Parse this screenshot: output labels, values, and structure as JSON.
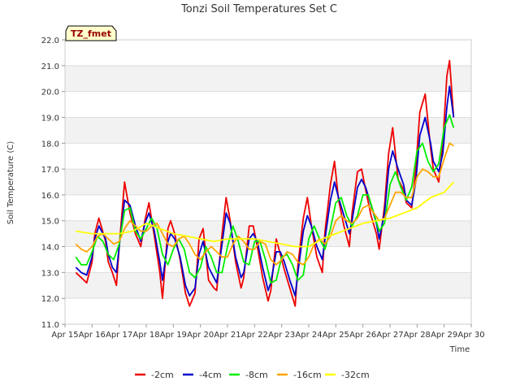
{
  "chart_data": {
    "type": "line",
    "title": "Tonzi Soil Temperatures Set C",
    "xlabel": "Time",
    "ylabel": "Soil Temperature (C)",
    "ylim": [
      11.0,
      22.0
    ],
    "yticks": [
      "11.0",
      "12.0",
      "13.0",
      "14.0",
      "15.0",
      "16.0",
      "17.0",
      "18.0",
      "19.0",
      "20.0",
      "21.0",
      "22.0"
    ],
    "xlim": [
      15,
      30
    ],
    "xticks": [
      "Apr 15",
      "Apr 16",
      "Apr 17",
      "Apr 18",
      "Apr 19",
      "Apr 20",
      "Apr 21",
      "Apr 22",
      "Apr 23",
      "Apr 24",
      "Apr 25",
      "Apr 26",
      "Apr 27",
      "Apr 28",
      "Apr 29",
      "Apr 30"
    ],
    "badge": "TZ_fmet",
    "grid": "horizontal bands",
    "legend_position": "bottom",
    "series": [
      {
        "name": "-2cm",
        "color": "#ee0000",
        "x": [
          15.4,
          15.6,
          15.8,
          16.0,
          16.1,
          16.25,
          16.5,
          16.6,
          16.75,
          16.9,
          17.0,
          17.2,
          17.4,
          17.6,
          17.8,
          17.95,
          18.1,
          18.3,
          18.5,
          18.6,
          18.8,
          18.9,
          19.05,
          19.25,
          19.45,
          19.6,
          19.8,
          19.95,
          20.1,
          20.3,
          20.5,
          20.6,
          20.8,
          20.95,
          21.1,
          21.3,
          21.5,
          21.6,
          21.8,
          21.95,
          22.1,
          22.3,
          22.5,
          22.6,
          22.8,
          22.95,
          23.1,
          23.3,
          23.5,
          23.6,
          23.8,
          23.95,
          24.1,
          24.3,
          24.5,
          24.6,
          24.8,
          24.95,
          25.1,
          25.3,
          25.5,
          25.6,
          25.8,
          25.95,
          26.1,
          26.3,
          26.5,
          26.6,
          26.8,
          26.95,
          27.1,
          27.3,
          27.5,
          27.6,
          27.8,
          27.95,
          28.1,
          28.3,
          28.5,
          28.6,
          28.8,
          28.95,
          29.1,
          29.2,
          29.35
        ],
        "y": [
          13.0,
          12.8,
          12.6,
          13.4,
          14.5,
          15.1,
          14.2,
          13.4,
          13.0,
          12.5,
          14.0,
          16.5,
          15.3,
          14.5,
          14.0,
          15.0,
          15.7,
          14.4,
          13.0,
          12.0,
          14.7,
          15.0,
          14.5,
          13.5,
          12.2,
          11.7,
          12.2,
          14.3,
          14.7,
          12.7,
          12.4,
          12.3,
          14.5,
          15.9,
          15.0,
          13.4,
          12.4,
          12.8,
          14.8,
          14.8,
          14.0,
          12.8,
          11.9,
          12.3,
          14.3,
          13.7,
          13.1,
          12.4,
          11.7,
          13.3,
          15.1,
          15.9,
          14.8,
          13.6,
          13.0,
          14.6,
          16.4,
          17.3,
          15.8,
          14.8,
          14.0,
          15.3,
          16.9,
          17.0,
          16.2,
          15.2,
          14.5,
          13.9,
          15.6,
          17.6,
          18.6,
          16.6,
          16.2,
          15.7,
          15.5,
          17.0,
          19.2,
          19.9,
          17.8,
          17.0,
          16.5,
          18.0,
          20.6,
          21.2,
          19.0
        ]
      },
      {
        "name": "-4cm",
        "color": "#0000cc",
        "x": [
          15.4,
          15.6,
          15.8,
          16.0,
          16.1,
          16.25,
          16.5,
          16.6,
          16.75,
          16.9,
          17.0,
          17.2,
          17.4,
          17.6,
          17.8,
          17.95,
          18.1,
          18.3,
          18.5,
          18.6,
          18.8,
          18.9,
          19.05,
          19.25,
          19.45,
          19.6,
          19.8,
          19.95,
          20.1,
          20.3,
          20.5,
          20.6,
          20.8,
          20.95,
          21.1,
          21.3,
          21.5,
          21.6,
          21.8,
          21.95,
          22.1,
          22.3,
          22.5,
          22.6,
          22.8,
          22.95,
          23.1,
          23.3,
          23.5,
          23.6,
          23.8,
          23.95,
          24.1,
          24.3,
          24.5,
          24.6,
          24.8,
          24.95,
          25.1,
          25.3,
          25.5,
          25.6,
          25.8,
          25.95,
          26.1,
          26.3,
          26.5,
          26.6,
          26.8,
          26.95,
          27.1,
          27.3,
          27.5,
          27.6,
          27.8,
          27.95,
          28.1,
          28.3,
          28.5,
          28.6,
          28.8,
          28.95,
          29.1,
          29.2,
          29.35
        ],
        "y": [
          13.2,
          13.0,
          12.9,
          13.6,
          14.3,
          14.8,
          14.3,
          13.7,
          13.2,
          13.0,
          14.0,
          15.8,
          15.6,
          14.8,
          14.2,
          14.9,
          15.3,
          14.6,
          13.4,
          12.7,
          14.2,
          14.5,
          14.3,
          13.6,
          12.5,
          12.1,
          12.4,
          13.7,
          14.2,
          13.2,
          12.8,
          12.6,
          14.1,
          15.3,
          14.9,
          13.6,
          12.8,
          13.0,
          14.3,
          14.5,
          14.2,
          13.2,
          12.3,
          12.6,
          13.8,
          13.8,
          13.4,
          12.7,
          12.1,
          13.0,
          14.6,
          15.2,
          14.8,
          14.0,
          13.5,
          14.3,
          15.8,
          16.5,
          15.9,
          15.2,
          14.5,
          15.0,
          16.3,
          16.6,
          16.3,
          15.6,
          14.9,
          14.3,
          15.3,
          17.0,
          17.7,
          17.0,
          16.4,
          15.8,
          15.6,
          16.5,
          18.3,
          19.0,
          18.0,
          17.3,
          16.9,
          17.6,
          19.4,
          20.2,
          19.0
        ]
      },
      {
        "name": "-8cm",
        "color": "#00ee00",
        "x": [
          15.4,
          15.6,
          15.8,
          16.0,
          16.2,
          16.4,
          16.6,
          16.8,
          17.0,
          17.2,
          17.4,
          17.6,
          17.8,
          18.0,
          18.2,
          18.4,
          18.6,
          18.8,
          19.0,
          19.2,
          19.4,
          19.6,
          19.8,
          20.0,
          20.2,
          20.4,
          20.6,
          20.8,
          21.0,
          21.2,
          21.4,
          21.6,
          21.8,
          22.0,
          22.2,
          22.4,
          22.6,
          22.8,
          23.0,
          23.2,
          23.4,
          23.6,
          23.8,
          24.0,
          24.2,
          24.4,
          24.6,
          24.8,
          25.0,
          25.2,
          25.4,
          25.6,
          25.8,
          26.0,
          26.2,
          26.4,
          26.6,
          26.8,
          27.0,
          27.2,
          27.4,
          27.6,
          27.8,
          28.0,
          28.2,
          28.4,
          28.6,
          28.8,
          29.0,
          29.2,
          29.35
        ],
        "y": [
          13.6,
          13.3,
          13.3,
          13.8,
          14.4,
          14.2,
          13.7,
          13.5,
          14.1,
          15.4,
          15.5,
          14.6,
          14.3,
          14.7,
          15.1,
          14.7,
          13.7,
          13.3,
          13.9,
          14.3,
          13.9,
          13.0,
          12.8,
          13.2,
          14.0,
          13.6,
          13.0,
          13.0,
          14.0,
          14.8,
          14.2,
          13.4,
          13.3,
          14.2,
          14.2,
          13.5,
          12.6,
          12.7,
          13.6,
          13.7,
          13.3,
          12.7,
          12.9,
          14.3,
          14.8,
          14.3,
          13.9,
          14.7,
          15.7,
          15.9,
          15.2,
          14.8,
          15.2,
          16.0,
          16.0,
          15.3,
          14.6,
          14.9,
          16.4,
          16.9,
          16.3,
          15.8,
          16.3,
          17.7,
          18.0,
          17.3,
          16.9,
          17.2,
          18.6,
          19.1,
          18.6
        ]
      },
      {
        "name": "-16cm",
        "color": "#ffa500",
        "x": [
          15.4,
          15.6,
          15.8,
          16.0,
          16.2,
          16.4,
          16.6,
          16.8,
          17.0,
          17.2,
          17.4,
          17.6,
          17.8,
          18.0,
          18.2,
          18.4,
          18.6,
          18.8,
          19.0,
          19.2,
          19.4,
          19.6,
          19.8,
          20.0,
          20.2,
          20.4,
          20.6,
          20.8,
          21.0,
          21.2,
          21.4,
          21.6,
          21.8,
          22.0,
          22.2,
          22.4,
          22.6,
          22.8,
          23.0,
          23.2,
          23.4,
          23.6,
          23.8,
          24.0,
          24.2,
          24.4,
          24.6,
          24.8,
          25.0,
          25.2,
          25.4,
          25.6,
          25.8,
          26.0,
          26.2,
          26.4,
          26.6,
          26.8,
          27.0,
          27.2,
          27.4,
          27.6,
          27.8,
          28.0,
          28.2,
          28.4,
          28.6,
          28.8,
          29.0,
          29.2,
          29.35
        ],
        "y": [
          14.1,
          13.9,
          13.8,
          14.0,
          14.4,
          14.5,
          14.3,
          14.1,
          14.2,
          14.7,
          15.0,
          14.8,
          14.6,
          14.6,
          14.8,
          14.9,
          14.5,
          14.1,
          14.0,
          14.3,
          14.4,
          14.1,
          13.7,
          13.5,
          13.8,
          14.0,
          13.8,
          13.6,
          13.6,
          14.1,
          14.4,
          14.2,
          13.9,
          13.9,
          14.2,
          14.1,
          13.5,
          13.3,
          13.5,
          13.8,
          13.7,
          13.4,
          13.3,
          13.6,
          14.1,
          14.3,
          14.1,
          14.4,
          15.0,
          15.2,
          15.0,
          14.9,
          15.1,
          15.5,
          15.6,
          15.3,
          15.0,
          15.1,
          15.6,
          16.1,
          16.1,
          15.9,
          15.9,
          16.7,
          17.0,
          16.9,
          16.7,
          16.7,
          17.4,
          18.0,
          17.9
        ]
      },
      {
        "name": "-32cm",
        "color": "#ffff00",
        "x": [
          15.4,
          16.0,
          16.5,
          17.0,
          17.5,
          18.0,
          18.5,
          19.0,
          19.5,
          20.0,
          20.5,
          21.0,
          21.5,
          22.0,
          22.5,
          23.0,
          23.5,
          24.0,
          24.5,
          25.0,
          25.5,
          26.0,
          26.5,
          27.0,
          27.5,
          28.0,
          28.5,
          29.0,
          29.35
        ],
        "y": [
          14.6,
          14.5,
          14.5,
          14.5,
          14.6,
          14.9,
          14.7,
          14.5,
          14.4,
          14.3,
          14.2,
          14.3,
          14.3,
          14.3,
          14.2,
          14.1,
          14.0,
          14.0,
          14.3,
          14.5,
          14.7,
          14.9,
          15.0,
          15.1,
          15.3,
          15.5,
          15.9,
          16.1,
          16.5
        ]
      }
    ]
  }
}
